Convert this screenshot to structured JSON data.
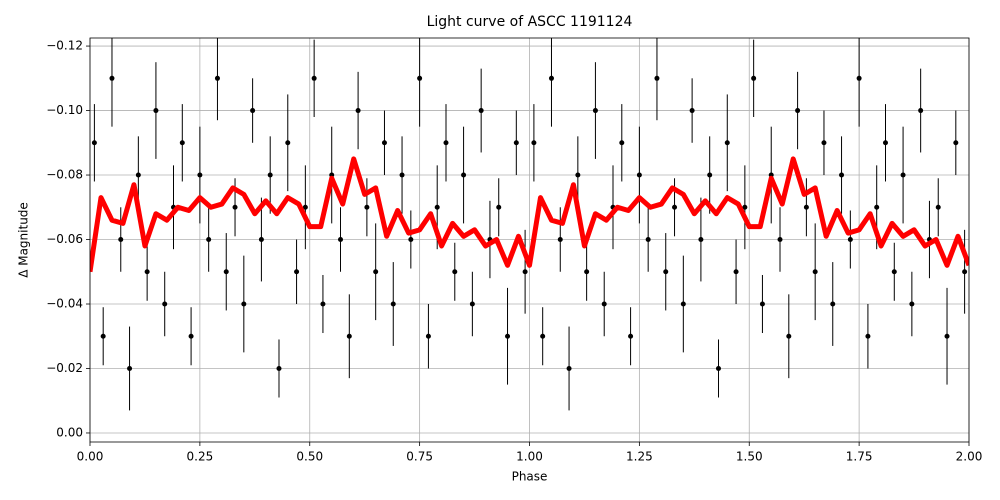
{
  "chart_data": {
    "type": "line",
    "title": "Light curve of ASCC 1191124",
    "x_label": "Phase",
    "y_label": "Δ Magnitude",
    "xlim": [
      0,
      2
    ],
    "ylim": [
      0.0028,
      -0.1225
    ],
    "xticks": [
      {
        "value": 0,
        "label": "0.00"
      },
      {
        "value": 0.25,
        "label": "0.25"
      },
      {
        "value": 0.5,
        "label": "0.50"
      },
      {
        "value": 0.75,
        "label": "0.75"
      },
      {
        "value": 1,
        "label": "1.00"
      },
      {
        "value": 1.25,
        "label": "1.25"
      },
      {
        "value": 1.5,
        "label": "1.50"
      },
      {
        "value": 1.75,
        "label": "1.75"
      },
      {
        "value": 2,
        "label": "2.00"
      }
    ],
    "yticks": [
      {
        "value": -0.12,
        "label": "−0.12"
      },
      {
        "value": -0.1,
        "label": "−0.10"
      },
      {
        "value": -0.08,
        "label": "−0.08"
      },
      {
        "value": -0.06,
        "label": "−0.06"
      },
      {
        "value": -0.04,
        "label": "−0.04"
      },
      {
        "value": -0.02,
        "label": "−0.02"
      },
      {
        "value": 0,
        "label": "0.00"
      }
    ],
    "grid": true,
    "series": [
      {
        "color": "#000000",
        "x": [
          0.01,
          0.03,
          0.05,
          0.07,
          0.09,
          0.11,
          0.13,
          0.15,
          0.17,
          0.19,
          0.21,
          0.23,
          0.25,
          0.27,
          0.29,
          0.31,
          0.33,
          0.35,
          0.37,
          0.39,
          0.41,
          0.43,
          0.45,
          0.47,
          0.49,
          0.51,
          0.53,
          0.55,
          0.57,
          0.59,
          0.61,
          0.63,
          0.65,
          0.67,
          0.69,
          0.71,
          0.73,
          0.75,
          0.77,
          0.79,
          0.81,
          0.83,
          0.85,
          0.87,
          0.89,
          0.91,
          0.93,
          0.95,
          0.97,
          0.99,
          1.01,
          1.03,
          1.05,
          1.07,
          1.09,
          1.11,
          1.13,
          1.15,
          1.17,
          1.19,
          1.21,
          1.23,
          1.25,
          1.27,
          1.29,
          1.31,
          1.33,
          1.35,
          1.37,
          1.39,
          1.41,
          1.43,
          1.45,
          1.47,
          1.49,
          1.51,
          1.53,
          1.55,
          1.57,
          1.59,
          1.61,
          1.63,
          1.65,
          1.67,
          1.69,
          1.71,
          1.73,
          1.75,
          1.77,
          1.79,
          1.81,
          1.83,
          1.85,
          1.87,
          1.89,
          1.91,
          1.93,
          1.95,
          1.97,
          1.99
        ],
        "values": [
          -0.09,
          -0.03,
          -0.11,
          -0.06,
          -0.02,
          -0.08,
          -0.05,
          -0.1,
          -0.04,
          -0.07,
          -0.09,
          -0.03,
          -0.08,
          -0.06,
          -0.11,
          -0.05,
          -0.07,
          -0.04,
          -0.1,
          -0.06,
          -0.08,
          -0.02,
          -0.09,
          -0.05,
          -0.07,
          -0.11,
          -0.04,
          -0.08,
          -0.06,
          -0.03,
          -0.1,
          -0.07,
          -0.05,
          -0.09,
          -0.04,
          -0.08,
          -0.06,
          -0.11,
          -0.03,
          -0.07,
          -0.09,
          -0.05,
          -0.08,
          -0.04,
          -0.1,
          -0.06,
          -0.07,
          -0.03,
          -0.09,
          -0.05,
          -0.09,
          -0.03,
          -0.11,
          -0.06,
          -0.02,
          -0.08,
          -0.05,
          -0.1,
          -0.04,
          -0.07,
          -0.09,
          -0.03,
          -0.08,
          -0.06,
          -0.11,
          -0.05,
          -0.07,
          -0.04,
          -0.1,
          -0.06,
          -0.08,
          -0.02,
          -0.09,
          -0.05,
          -0.07,
          -0.11,
          -0.04,
          -0.08,
          -0.06,
          -0.03,
          -0.1,
          -0.07,
          -0.05,
          -0.09,
          -0.04,
          -0.08,
          -0.06,
          -0.11,
          -0.03,
          -0.07,
          -0.09,
          -0.05,
          -0.08,
          -0.04,
          -0.1,
          -0.06,
          -0.07,
          -0.03,
          -0.09,
          -0.05
        ],
        "errors": [
          0.012,
          0.009,
          0.015,
          0.01,
          0.013,
          0.012,
          0.009,
          0.015,
          0.01,
          0.013,
          0.012,
          0.009,
          0.015,
          0.01,
          0.013,
          0.012,
          0.009,
          0.015,
          0.01,
          0.013,
          0.012,
          0.009,
          0.015,
          0.01,
          0.013,
          0.012,
          0.009,
          0.015,
          0.01,
          0.013,
          0.012,
          0.009,
          0.015,
          0.01,
          0.013,
          0.012,
          0.009,
          0.015,
          0.01,
          0.013,
          0.012,
          0.009,
          0.015,
          0.01,
          0.013,
          0.012,
          0.009,
          0.015,
          0.01,
          0.013,
          0.012,
          0.009,
          0.015,
          0.01,
          0.013,
          0.012,
          0.009,
          0.015,
          0.01,
          0.013,
          0.012,
          0.009,
          0.015,
          0.01,
          0.013,
          0.012,
          0.009,
          0.015,
          0.01,
          0.013,
          0.012,
          0.009,
          0.015,
          0.01,
          0.013,
          0.012,
          0.009,
          0.015,
          0.01,
          0.013,
          0.012,
          0.009,
          0.015,
          0.01,
          0.013,
          0.012,
          0.009,
          0.015,
          0.01,
          0.013,
          0.012,
          0.009,
          0.015,
          0.01,
          0.013,
          0.012,
          0.009,
          0.015,
          0.01,
          0.013
        ]
      },
      {
        "color": "#ff0000",
        "x": [
          0,
          0.025,
          0.05,
          0.075,
          0.1,
          0.125,
          0.15,
          0.175,
          0.2,
          0.225,
          0.25,
          0.275,
          0.3,
          0.325,
          0.35,
          0.375,
          0.4,
          0.425,
          0.45,
          0.475,
          0.5,
          0.525,
          0.55,
          0.575,
          0.6,
          0.625,
          0.65,
          0.675,
          0.7,
          0.725,
          0.75,
          0.775,
          0.8,
          0.825,
          0.85,
          0.875,
          0.9,
          0.925,
          0.95,
          0.975,
          1,
          1.025,
          1.05,
          1.075,
          1.1,
          1.125,
          1.15,
          1.175,
          1.2,
          1.225,
          1.25,
          1.275,
          1.3,
          1.325,
          1.35,
          1.375,
          1.4,
          1.425,
          1.45,
          1.475,
          1.5,
          1.525,
          1.55,
          1.575,
          1.6,
          1.625,
          1.65,
          1.675,
          1.7,
          1.725,
          1.75,
          1.775,
          1.8,
          1.825,
          1.85,
          1.875,
          1.9,
          1.925,
          1.95,
          1.975,
          2
        ],
        "values": [
          -0.05,
          -0.073,
          -0.066,
          -0.065,
          -0.077,
          -0.058,
          -0.068,
          -0.066,
          -0.07,
          -0.069,
          -0.073,
          -0.07,
          -0.071,
          -0.076,
          -0.074,
          -0.068,
          -0.072,
          -0.068,
          -0.073,
          -0.071,
          -0.064,
          -0.064,
          -0.079,
          -0.071,
          -0.085,
          -0.074,
          -0.076,
          -0.061,
          -0.069,
          -0.062,
          -0.063,
          -0.068,
          -0.058,
          -0.065,
          -0.061,
          -0.063,
          -0.058,
          -0.06,
          -0.052,
          -0.061,
          -0.052,
          -0.073,
          -0.066,
          -0.065,
          -0.077,
          -0.058,
          -0.068,
          -0.066,
          -0.07,
          -0.069,
          -0.073,
          -0.07,
          -0.071,
          -0.076,
          -0.074,
          -0.068,
          -0.072,
          -0.068,
          -0.073,
          -0.071,
          -0.064,
          -0.064,
          -0.079,
          -0.071,
          -0.085,
          -0.074,
          -0.076,
          -0.061,
          -0.069,
          -0.062,
          -0.063,
          -0.068,
          -0.058,
          -0.065,
          -0.061,
          -0.063,
          -0.058,
          -0.06,
          -0.052,
          -0.061,
          -0.052
        ]
      }
    ]
  }
}
